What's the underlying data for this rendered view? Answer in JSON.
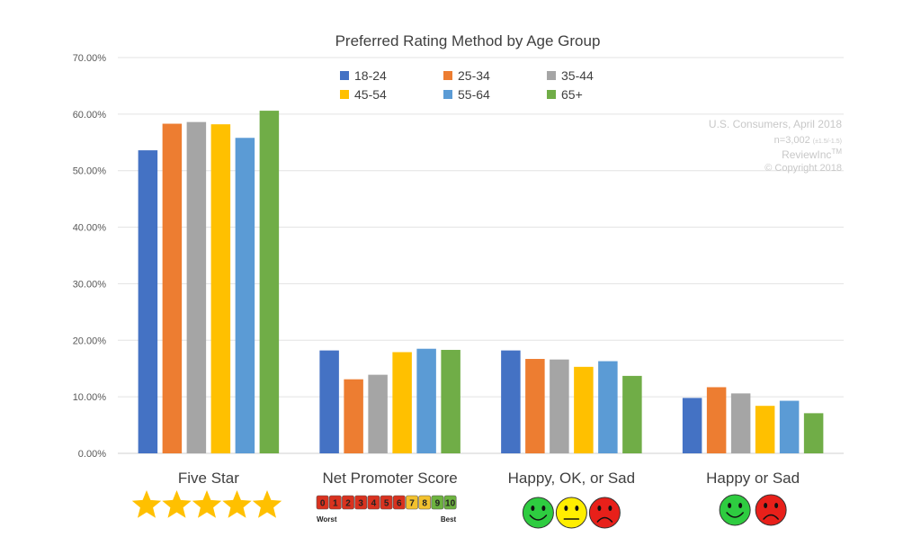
{
  "chart_data": {
    "type": "bar",
    "title": "Preferred Rating Method by Age Group",
    "xlabel": "",
    "ylabel": "",
    "ylim": [
      0,
      70
    ],
    "y_ticks": [
      "0.00%",
      "10.00%",
      "20.00%",
      "30.00%",
      "40.00%",
      "50.00%",
      "60.00%",
      "70.00%"
    ],
    "grid": true,
    "legend_position": "top-center",
    "categories": [
      "Five Star",
      "Net Promoter Score",
      "Happy, OK, or Sad",
      "Happy or Sad"
    ],
    "series": [
      {
        "name": "18-24",
        "color": "#4472C4",
        "values": [
          53.6,
          18.2,
          18.2,
          9.8
        ]
      },
      {
        "name": "25-34",
        "color": "#ED7D31",
        "values": [
          58.3,
          13.1,
          16.7,
          11.7
        ]
      },
      {
        "name": "35-44",
        "color": "#A5A5A5",
        "values": [
          58.6,
          13.9,
          16.6,
          10.6
        ]
      },
      {
        "name": "45-54",
        "color": "#FFC000",
        "values": [
          58.2,
          17.9,
          15.3,
          8.4
        ]
      },
      {
        "name": "55-64",
        "color": "#5B9BD5",
        "values": [
          55.8,
          18.5,
          16.3,
          9.3
        ]
      },
      {
        "name": "65+",
        "color": "#70AD47",
        "values": [
          60.6,
          18.3,
          13.7,
          7.1
        ]
      }
    ]
  },
  "watermark": {
    "line1": "U.S. Consumers, April 2018",
    "line2": "n=3,002",
    "line2_small": "(±1.5/-1.5)",
    "line3": "ReviewInc",
    "line3_tm": "TM",
    "line4": "© Copyright 2018"
  },
  "nps_scale": {
    "numbers": [
      "0",
      "1",
      "2",
      "3",
      "4",
      "5",
      "6",
      "7",
      "8",
      "9",
      "10"
    ],
    "colors": [
      "#D9321F",
      "#D9321F",
      "#D9321F",
      "#D9321F",
      "#D9321F",
      "#D9321F",
      "#D9321F",
      "#F2C12E",
      "#F2C12E",
      "#6DB33F",
      "#6DB33F"
    ],
    "worst_label": "Worst",
    "best_label": "Best"
  },
  "icons": {
    "five_star": "five-gold-stars",
    "happy_ok_sad": [
      "happy-face-green",
      "neutral-face-yellow",
      "sad-face-red"
    ],
    "happy_sad": [
      "happy-face-green",
      "sad-face-red"
    ]
  },
  "colors": {
    "star": "#FFC000",
    "happy": "#2ECC40",
    "neutral": "#FFEE00",
    "sad": "#E8201A"
  }
}
